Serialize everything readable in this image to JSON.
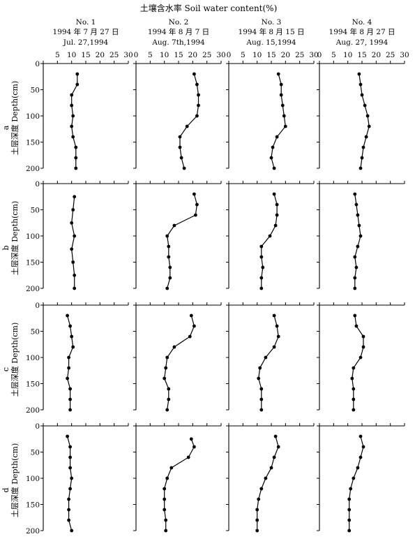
{
  "chart_data": {
    "type": "line",
    "title": "土壤含水率  Soil water content(%)",
    "ylabel": "土层深度 Depth(cm)",
    "xlim": [
      0,
      30
    ],
    "ylim": [
      0,
      200
    ],
    "xticks": [
      0,
      5,
      10,
      15,
      20,
      25,
      30
    ],
    "yticks": [
      0,
      50,
      100,
      150,
      200
    ],
    "columns": [
      {
        "label": "No. 1",
        "date_cn": "1994 年 7 月 27 日",
        "date_en": "Jul. 27,1994",
        "xtick_labels": [
          "5",
          "10",
          "15",
          "20",
          "25",
          "30"
        ]
      },
      {
        "label": "No. 2",
        "date_cn": "1994 年 8 月 7 日",
        "date_en": "Aug. 7th,1994",
        "xtick_labels": [
          "0",
          "5",
          "10",
          "15",
          "20",
          "25",
          "30"
        ]
      },
      {
        "label": "No. 3",
        "date_cn": "1994 年 8 月 15 日",
        "date_en": "Aug. 15,1994",
        "xtick_labels": [
          "0",
          "5",
          "10",
          "15",
          "20",
          "25",
          "30"
        ]
      },
      {
        "label": "No. 4",
        "date_cn": "1994 年 8 月 27 日",
        "date_en": "Aug. 27, 1994",
        "xtick_labels": [
          "0",
          "5",
          "10",
          "15",
          "20",
          "25",
          "30"
        ]
      }
    ],
    "rows": [
      "a",
      "b",
      "c",
      "d"
    ],
    "ytick_labels": [
      "0",
      "50",
      "100",
      "150",
      "200"
    ],
    "panels": [
      {
        "row": "a",
        "col": 1,
        "depth": [
          20,
          40,
          60,
          80,
          100,
          120,
          140,
          160,
          180,
          200
        ],
        "water": [
          12.0,
          12.0,
          10.0,
          10.0,
          10.5,
          10.0,
          10.5,
          11.5,
          11.5,
          11.5
        ]
      },
      {
        "row": "a",
        "col": 2,
        "depth": [
          20,
          40,
          60,
          80,
          100,
          120,
          140,
          160,
          180,
          200
        ],
        "water": [
          20.5,
          21.5,
          22.0,
          22.0,
          21.5,
          18.0,
          15.5,
          15.5,
          16.0,
          17.0
        ]
      },
      {
        "row": "a",
        "col": 3,
        "depth": [
          20,
          40,
          60,
          80,
          100,
          120,
          140,
          160,
          180,
          200
        ],
        "water": [
          17.5,
          18.5,
          18.5,
          19.0,
          19.5,
          20.0,
          17.0,
          15.5,
          15.0,
          16.0
        ]
      },
      {
        "row": "a",
        "col": 4,
        "depth": [
          20,
          40,
          60,
          80,
          100,
          120,
          140,
          160,
          180,
          200
        ],
        "water": [
          14.0,
          14.5,
          15.0,
          16.0,
          17.0,
          17.5,
          16.5,
          15.5,
          15.0,
          14.5
        ]
      },
      {
        "row": "b",
        "col": 1,
        "depth": [
          25,
          50,
          75,
          100,
          125,
          150,
          175,
          200
        ],
        "water": [
          11.0,
          10.5,
          10.0,
          11.0,
          10.0,
          10.5,
          11.0,
          11.0
        ]
      },
      {
        "row": "b",
        "col": 2,
        "depth": [
          20,
          40,
          60,
          80,
          100,
          120,
          140,
          160,
          180,
          200
        ],
        "water": [
          20.5,
          21.5,
          21.0,
          13.5,
          11.0,
          11.5,
          11.5,
          12.0,
          12.0,
          11.0
        ]
      },
      {
        "row": "b",
        "col": 3,
        "depth": [
          20,
          40,
          60,
          80,
          100,
          120,
          140,
          160,
          180,
          200
        ],
        "water": [
          16.0,
          17.0,
          17.0,
          16.5,
          14.5,
          11.5,
          11.5,
          12.0,
          11.5,
          11.5
        ]
      },
      {
        "row": "b",
        "col": 4,
        "depth": [
          20,
          40,
          60,
          80,
          100,
          120,
          140,
          160,
          180,
          200
        ],
        "water": [
          12.5,
          13.0,
          13.5,
          14.0,
          14.5,
          13.5,
          12.5,
          13.0,
          12.5,
          12.5
        ]
      },
      {
        "row": "c",
        "col": 1,
        "depth": [
          20,
          40,
          60,
          80,
          100,
          120,
          140,
          160,
          180,
          200
        ],
        "water": [
          8.5,
          9.5,
          10.0,
          10.5,
          9.0,
          9.0,
          8.5,
          9.5,
          9.5,
          9.5
        ]
      },
      {
        "row": "c",
        "col": 2,
        "depth": [
          20,
          40,
          60,
          80,
          100,
          120,
          140,
          160,
          180,
          200
        ],
        "water": [
          19.5,
          20.5,
          19.0,
          13.5,
          11.0,
          10.5,
          10.0,
          11.5,
          11.5,
          11.0
        ]
      },
      {
        "row": "c",
        "col": 3,
        "depth": [
          20,
          40,
          60,
          80,
          100,
          120,
          140,
          160,
          180,
          200
        ],
        "water": [
          16.0,
          17.0,
          17.5,
          16.0,
          13.0,
          11.0,
          10.5,
          11.5,
          11.5,
          11.5
        ]
      },
      {
        "row": "c",
        "col": 4,
        "depth": [
          20,
          40,
          60,
          80,
          100,
          120,
          140,
          160,
          180,
          200
        ],
        "water": [
          12.5,
          13.0,
          15.5,
          15.5,
          14.5,
          12.0,
          11.5,
          12.0,
          12.0,
          12.0
        ]
      },
      {
        "row": "d",
        "col": 1,
        "depth": [
          20,
          40,
          60,
          80,
          100,
          120,
          140,
          160,
          180,
          200
        ],
        "water": [
          8.5,
          9.5,
          9.5,
          9.5,
          10.0,
          9.5,
          9.0,
          9.0,
          9.0,
          10.0
        ]
      },
      {
        "row": "d",
        "col": 2,
        "depth": [
          25,
          40,
          60,
          80,
          100,
          120,
          140,
          160,
          180,
          200
        ],
        "water": [
          19.5,
          20.5,
          18.5,
          12.5,
          11.0,
          10.0,
          10.0,
          10.0,
          10.5,
          10.5
        ]
      },
      {
        "row": "d",
        "col": 3,
        "depth": [
          20,
          40,
          60,
          80,
          100,
          120,
          140,
          160,
          180,
          200
        ],
        "water": [
          16.5,
          17.5,
          16.0,
          15.0,
          13.0,
          11.5,
          10.5,
          10.0,
          10.0,
          10.0
        ]
      },
      {
        "row": "d",
        "col": 4,
        "depth": [
          20,
          40,
          60,
          80,
          100,
          120,
          140,
          160,
          180,
          200
        ],
        "water": [
          14.5,
          15.5,
          14.5,
          13.5,
          12.0,
          11.0,
          10.5,
          10.5,
          10.5,
          10.5
        ]
      }
    ]
  }
}
